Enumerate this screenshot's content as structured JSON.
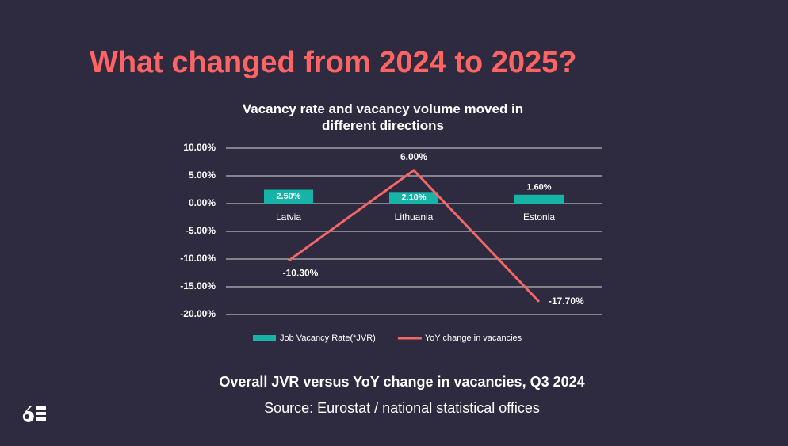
{
  "heading": "What changed from 2024 to 2025?",
  "chart_data": {
    "type": "bar-line",
    "title": "Vacancy rate and vacancy volume moved in different directions",
    "categories": [
      "Latvia",
      "Lithuania",
      "Estonia"
    ],
    "series": [
      {
        "name": "Job Vacancy Rate(*JVR)",
        "type": "bar",
        "color": "#17b3a6",
        "values": [
          2.5,
          2.1,
          1.6
        ],
        "value_labels": [
          "2.50%",
          "2.10%",
          "1.60%"
        ]
      },
      {
        "name": "YoY change in vacancies",
        "type": "line",
        "color": "#f36767",
        "values": [
          -10.3,
          6,
          -17.7
        ],
        "value_labels": [
          "-10.30%",
          "6.00%",
          "-17.70%"
        ]
      }
    ],
    "ylim": [
      -20,
      10
    ],
    "yticks": [
      {
        "value": 10,
        "label": "10.00%"
      },
      {
        "value": 5,
        "label": "5.00%"
      },
      {
        "value": 0,
        "label": "0.00%"
      },
      {
        "value": -5,
        "label": "-5.00%"
      },
      {
        "value": -10,
        "label": "-10.00%"
      },
      {
        "value": -15,
        "label": "-15.00%"
      },
      {
        "value": -20,
        "label": "-20.00%"
      }
    ],
    "grid": true
  },
  "caption": "Overall JVR versus YoY change in vacancies, Q3 2024",
  "source": "Source: Eurostat / national statistical offices"
}
